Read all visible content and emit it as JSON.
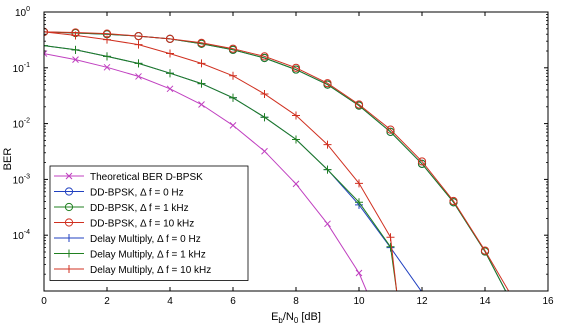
{
  "chart_data": {
    "type": "line",
    "title": "",
    "xlabel": {
      "main": "E",
      "sub1": "b",
      "mid": "/N",
      "sub2": "0",
      "tail": " [dB]"
    },
    "ylabel": "BER",
    "xlim": [
      0,
      16
    ],
    "ylim": [
      1e-05,
      1
    ],
    "yscale": "log",
    "grid": false,
    "legend_position": "bottom-left",
    "x_ticks": [
      "0",
      "2",
      "4",
      "6",
      "8",
      "10",
      "12",
      "14",
      "16"
    ],
    "y_ticks": [
      {
        "base": "10",
        "exp": "0",
        "value": 1
      },
      {
        "base": "10",
        "exp": "-1",
        "value": 0.1
      },
      {
        "base": "10",
        "exp": "-2",
        "value": 0.01
      },
      {
        "base": "10",
        "exp": "-3",
        "value": 0.001
      },
      {
        "base": "10",
        "exp": "-4",
        "value": 0.0001
      }
    ],
    "series": [
      {
        "name": "Theoretical BER D-BPSK",
        "color": "#c040c0",
        "marker": "x",
        "x": [
          0,
          1,
          2,
          3,
          4,
          5,
          6,
          7,
          8,
          9,
          10,
          10.5
        ],
        "y": [
          0.18,
          0.14,
          0.102,
          0.07,
          0.042,
          0.022,
          0.0093,
          0.0032,
          0.00083,
          0.00016,
          2.1e-05,
          4.5e-06
        ]
      },
      {
        "name": "DD-BPSK, Δ f = 0 Hz",
        "color": "#2040c0",
        "marker": "o",
        "x": [
          0,
          1,
          2,
          3,
          4,
          5,
          6,
          7,
          8,
          9,
          10,
          11,
          12,
          13,
          14,
          14.7
        ],
        "y": [
          0.44,
          0.42,
          0.4,
          0.37,
          0.33,
          0.27,
          0.21,
          0.15,
          0.093,
          0.05,
          0.021,
          0.0071,
          0.0019,
          0.00039,
          5.1e-05,
          9e-06
        ]
      },
      {
        "name": "DD-BPSK, Δ f = 1 kHz",
        "color": "#208020",
        "marker": "o",
        "x": [
          0,
          1,
          2,
          3,
          4,
          5,
          6,
          7,
          8,
          9,
          10,
          11,
          12,
          13,
          14,
          14.7
        ],
        "y": [
          0.44,
          0.42,
          0.4,
          0.37,
          0.33,
          0.27,
          0.21,
          0.15,
          0.093,
          0.05,
          0.021,
          0.0071,
          0.0019,
          0.00039,
          5.1e-05,
          9e-06
        ]
      },
      {
        "name": "DD-BPSK, Δ f = 10 kHz",
        "color": "#d03020",
        "marker": "o",
        "x": [
          0,
          1,
          2,
          3,
          4,
          5,
          6,
          7,
          8,
          9,
          10,
          11,
          12,
          13,
          14,
          14.8
        ],
        "y": [
          0.44,
          0.43,
          0.41,
          0.37,
          0.33,
          0.28,
          0.22,
          0.16,
          0.1,
          0.053,
          0.022,
          0.0078,
          0.0021,
          0.00041,
          5.3e-05,
          9e-06
        ]
      },
      {
        "name": "Delay Multiply, Δ f = 0 Hz",
        "color": "#2040c0",
        "marker": "+",
        "x": [
          0,
          1,
          2,
          3,
          4,
          5,
          6,
          7,
          8,
          9,
          10,
          11,
          12
        ],
        "y": [
          0.25,
          0.21,
          0.16,
          0.12,
          0.08,
          0.052,
          0.029,
          0.013,
          0.0052,
          0.0015,
          0.00035,
          6e-05,
          9.5e-06
        ]
      },
      {
        "name": "Delay Multiply, Δ f = 1 kHz",
        "color": "#208020",
        "marker": "+",
        "x": [
          0,
          1,
          2,
          3,
          4,
          5,
          6,
          7,
          8,
          9,
          10,
          11,
          11.2
        ],
        "y": [
          0.25,
          0.21,
          0.16,
          0.12,
          0.08,
          0.052,
          0.029,
          0.013,
          0.0052,
          0.0015,
          0.00039,
          6.2e-05,
          9.5e-06
        ]
      },
      {
        "name": "Delay Multiply, Δ f = 10 kHz",
        "color": "#d03020",
        "marker": "+",
        "x": [
          0,
          1,
          2,
          3,
          4,
          5,
          6,
          7,
          8,
          9,
          10,
          11,
          11.2
        ],
        "y": [
          0.44,
          0.38,
          0.32,
          0.26,
          0.18,
          0.12,
          0.072,
          0.034,
          0.014,
          0.0042,
          0.00085,
          9.2e-05,
          9.5e-06
        ]
      }
    ]
  }
}
